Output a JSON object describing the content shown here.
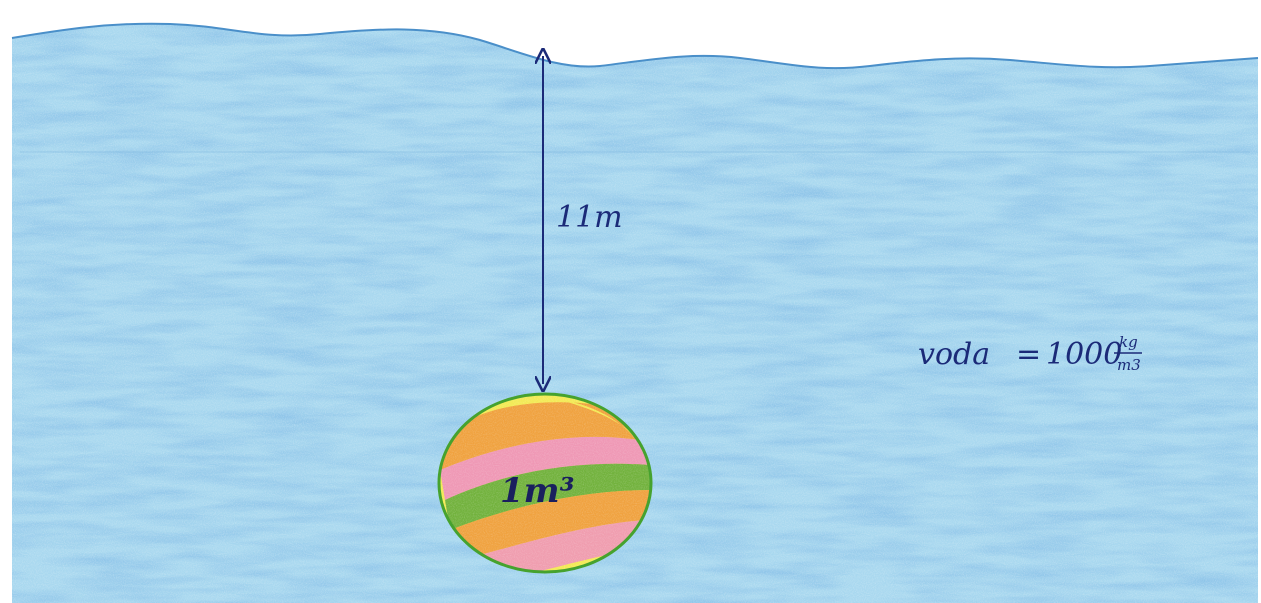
{
  "colors": {
    "water": "#7ec3e6",
    "water_dark": "#3f86c8",
    "water_light": "#cfe9f6",
    "ink": "#1b2a78",
    "ball_outline": "#46a22e",
    "ball_yellow": "#f3ea55",
    "ball_orange": "#ef9a3d",
    "ball_pink": "#ee8fc0",
    "ball_green": "#5aa83a"
  },
  "depth_label": "11m",
  "ball_label": "1m³",
  "density": {
    "name": "voda",
    "equals": "=",
    "value": "1000",
    "unit_num": "kg",
    "unit_den": "m3"
  }
}
